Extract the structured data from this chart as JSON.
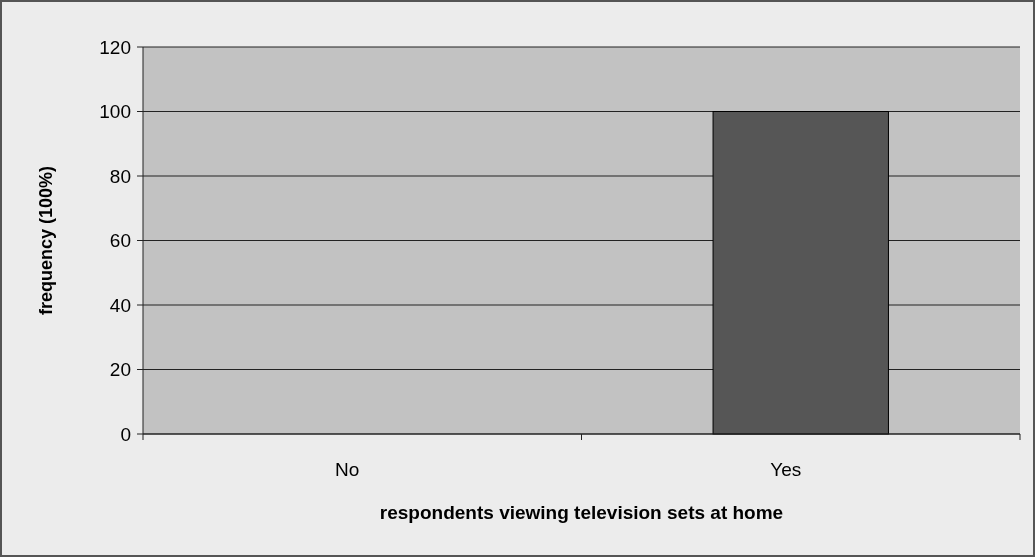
{
  "chart_data": {
    "type": "bar",
    "xlabel": "respondents viewing television sets at home",
    "ylabel": "frequency (100%)",
    "categories": [
      "No",
      "Yes"
    ],
    "values": [
      0,
      100
    ],
    "color": "#565656",
    "ylim": [
      0,
      120
    ],
    "yticks": [
      0,
      20,
      40,
      60,
      80,
      100,
      120
    ],
    "grid": "y"
  }
}
